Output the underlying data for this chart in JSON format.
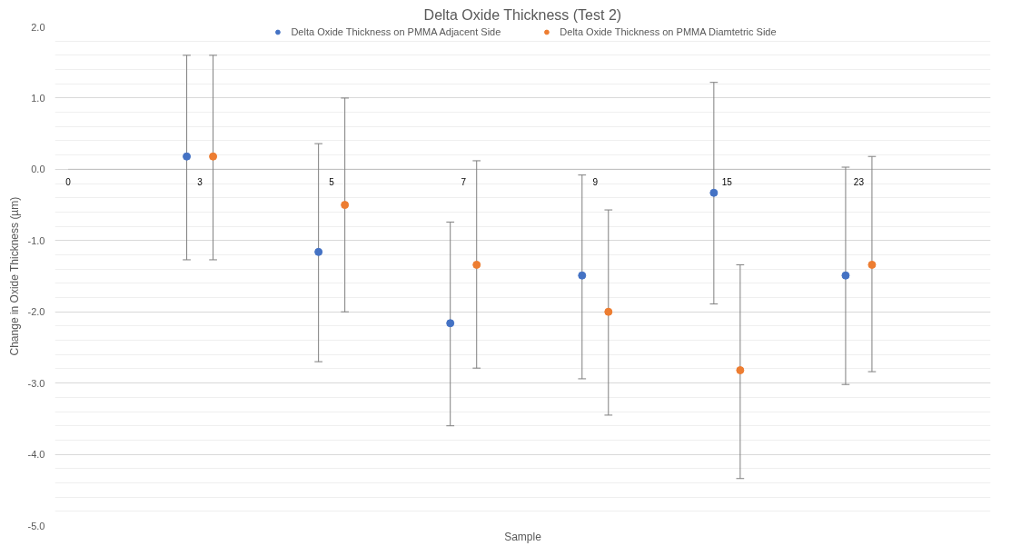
{
  "chart_data": {
    "type": "scatter",
    "title": "Delta Oxide Thickness (Test 2)",
    "xlabel": "Sample",
    "ylabel": "Change in Oxide Thickness (µm)",
    "categories": [
      "0",
      "3",
      "5",
      "7",
      "9",
      "15",
      "23"
    ],
    "series": [
      {
        "name": "Delta Oxide Thickness on PMMA Adjacent Side",
        "color": "#4472c4",
        "values": [
          null,
          0.18,
          -1.16,
          -2.16,
          -1.49,
          -0.33,
          -1.49
        ],
        "errors": [
          null,
          [
            -1.27,
            1.6
          ],
          [
            -2.7,
            0.36
          ],
          [
            -3.6,
            -0.74
          ],
          [
            -2.94,
            -0.08
          ],
          [
            -1.89,
            1.22
          ],
          [
            -3.02,
            0.03
          ]
        ]
      },
      {
        "name": "Delta Oxide Thickness on PMMA Diamtetric Side",
        "color": "#ed7d31",
        "values": [
          null,
          0.18,
          -0.5,
          -1.34,
          -2.0,
          -2.82,
          -1.34
        ],
        "errors": [
          null,
          [
            -1.27,
            1.6
          ],
          [
            -2.0,
            1.0
          ],
          [
            -2.79,
            0.12
          ],
          [
            -3.45,
            -0.57
          ],
          [
            -4.34,
            -1.34
          ],
          [
            -2.84,
            0.18
          ]
        ]
      }
    ],
    "ylim": [
      -5,
      2
    ],
    "yticks": [
      {
        "value": -5,
        "label": "-5.0"
      },
      {
        "value": -4,
        "label": "-4.0"
      },
      {
        "value": -3,
        "label": "-3.0"
      },
      {
        "value": -2,
        "label": "-2.0"
      },
      {
        "value": -1,
        "label": "-1.0"
      },
      {
        "value": 0,
        "label": "0.0"
      },
      {
        "value": 1,
        "label": "1.0"
      },
      {
        "value": 2,
        "label": "2.0"
      }
    ],
    "grid": "y",
    "legend": "top",
    "marker": "circle"
  }
}
